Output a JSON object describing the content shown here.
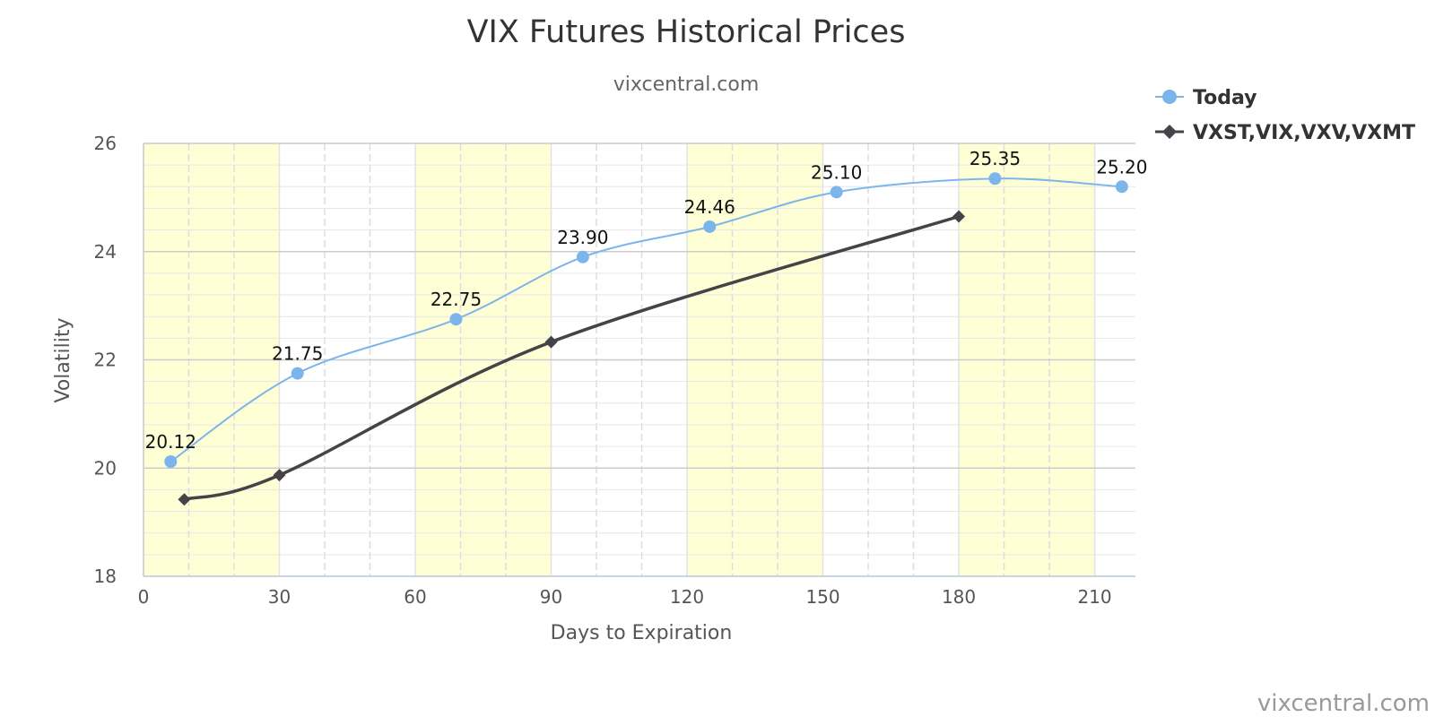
{
  "chart_data": {
    "type": "line",
    "title": "VIX Futures Historical Prices",
    "subtitle": "vixcentral.com",
    "xlabel": "Days to Expiration",
    "ylabel": "Volatility",
    "xlim": [
      0,
      219
    ],
    "ylim": [
      18,
      26
    ],
    "x_ticks": [
      0,
      30,
      60,
      90,
      120,
      150,
      180,
      210
    ],
    "y_ticks": [
      18,
      20,
      22,
      24,
      26
    ],
    "grid": true,
    "legend_position": "top-right",
    "highlight_bands": [
      [
        0,
        30
      ],
      [
        60,
        90
      ],
      [
        120,
        150
      ],
      [
        180,
        210
      ]
    ],
    "series": [
      {
        "name": "Today",
        "color": "#7cb5ec",
        "marker": "circle",
        "x": [
          6,
          34,
          69,
          97,
          125,
          153,
          188,
          216
        ],
        "y": [
          20.12,
          21.75,
          22.75,
          23.9,
          24.46,
          25.1,
          25.35,
          25.2
        ],
        "labels": [
          "20.12",
          "21.75",
          "22.75",
          "23.90",
          "24.46",
          "25.10",
          "25.35",
          "25.20"
        ]
      },
      {
        "name": "VXST,VIX,VXV,VXMT",
        "color": "#434348",
        "marker": "diamond",
        "x": [
          9,
          30,
          90,
          180
        ],
        "y": [
          19.42,
          19.87,
          22.33,
          24.65
        ]
      }
    ]
  },
  "credit": "vixcentral.com"
}
